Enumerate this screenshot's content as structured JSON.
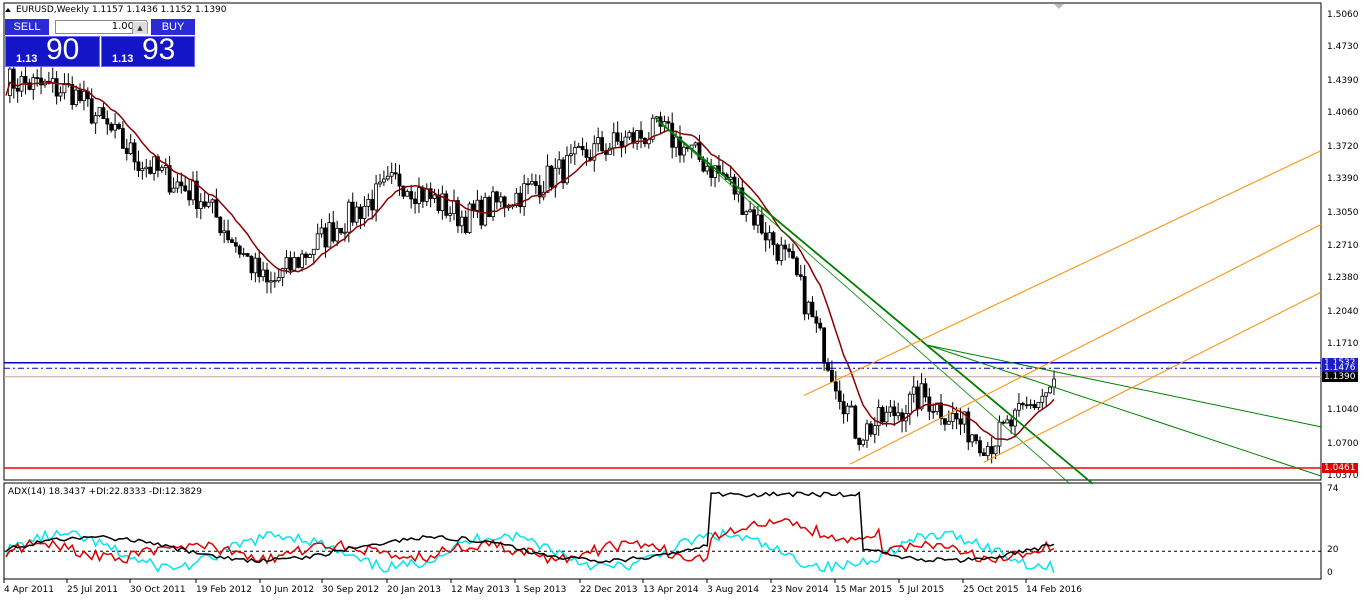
{
  "window": {
    "title": "EURUSD,Weekly  1.1157 1.1436 1.1152 1.1390"
  },
  "trade_panel": {
    "sell_label": "SELL",
    "buy_label": "BUY",
    "lot_value": "1.00",
    "sell_small": "1.13",
    "sell_big": "90",
    "buy_small": "1.13",
    "buy_big": "93"
  },
  "price_axis": {
    "ticks": [
      "1.5060",
      "1.4730",
      "1.4390",
      "1.4060",
      "1.3720",
      "1.3390",
      "1.3050",
      "1.2710",
      "1.2380",
      "1.2040",
      "1.1710",
      "1.1040",
      "1.0700",
      "1.0370"
    ],
    "tags": [
      {
        "label": "1.1532",
        "color": "#1c1cc8"
      },
      {
        "label": "1.1476",
        "color": "#1c1cc8"
      },
      {
        "label": "1.1390",
        "color": "#000000"
      },
      {
        "label": "1.0461",
        "color": "#e00000"
      }
    ]
  },
  "indicator": {
    "label": "ADX(14) 18.3437 +DI:22.8333 -DI:12.3829",
    "ticks": [
      "74",
      "20",
      "0"
    ]
  },
  "time_axis": {
    "labels": [
      "4 Apr 2011",
      "25 Jul 2011",
      "30 Oct 2011",
      "19 Feb 2012",
      "10 Jun 2012",
      "30 Sep 2012",
      "20 Jan 2013",
      "12 May 2013",
      "1 Sep 2013",
      "22 Dec 2013",
      "13 Apr 2014",
      "3 Aug 2014",
      "23 Nov 2014",
      "15 Mar 2015",
      "5 Jul 2015",
      "25 Oct 2015",
      "14 Feb 2016"
    ]
  },
  "colors": {
    "ma": "#8b0000",
    "support": "#ff0000",
    "resistance": "#0000c8",
    "trend": "#008000",
    "channel": "#ff8c00",
    "adx": "#000000",
    "plus_di": "#e00000",
    "minus_di": "#00e5ee"
  },
  "chart_data": {
    "type": "line",
    "symbol": "EURUSD",
    "timeframe": "Weekly",
    "ylim": [
      1.037,
      1.506
    ],
    "x": [
      "4 Apr 2011",
      "25 Jul 2011",
      "30 Oct 2011",
      "19 Feb 2012",
      "10 Jun 2012",
      "30 Sep 2012",
      "20 Jan 2013",
      "12 May 2013",
      "1 Sep 2013",
      "22 Dec 2013",
      "13 Apr 2014",
      "3 Aug 2014",
      "23 Nov 2014",
      "15 Mar 2015",
      "5 Jul 2015",
      "25 Oct 2015",
      "14 Feb 2016"
    ],
    "series": [
      {
        "values": [
          1.44,
          1.43,
          1.36,
          1.32,
          1.23,
          1.29,
          1.34,
          1.3,
          1.33,
          1.37,
          1.39,
          1.34,
          1.25,
          1.08,
          1.12,
          1.07,
          1.13
        ]
      }
    ],
    "grid": false
  }
}
